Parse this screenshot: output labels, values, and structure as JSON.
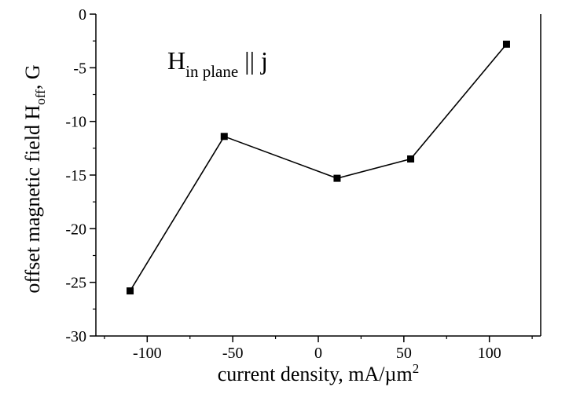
{
  "chart_data": {
    "type": "line",
    "annotation": {
      "main": "H",
      "subscript": "in plane",
      "tail": " || j"
    },
    "xlabel": {
      "text": "current density, mA/µm",
      "superscript": "2"
    },
    "ylabel": {
      "text": "offset magnetic field H",
      "subscript": "off",
      "tail": ", G"
    },
    "xlim": [
      -130,
      130
    ],
    "ylim": [
      -30,
      0
    ],
    "x_ticks": [
      -100,
      -50,
      0,
      50,
      100
    ],
    "x_tick_labels": [
      "-100",
      "-50",
      "0",
      "50",
      "100"
    ],
    "y_ticks": [
      0,
      -5,
      -10,
      -15,
      -20,
      -25,
      -30
    ],
    "y_tick_labels": [
      "0",
      "-5",
      "-10",
      "-15",
      "-20",
      "-25",
      "-30"
    ],
    "grid": false,
    "series": [
      {
        "x": [
          -110,
          -55,
          11,
          54,
          110
        ],
        "y": [
          -25.8,
          -11.4,
          -15.3,
          -13.5,
          -2.8
        ],
        "marker": "square",
        "color": "#000000"
      }
    ]
  }
}
